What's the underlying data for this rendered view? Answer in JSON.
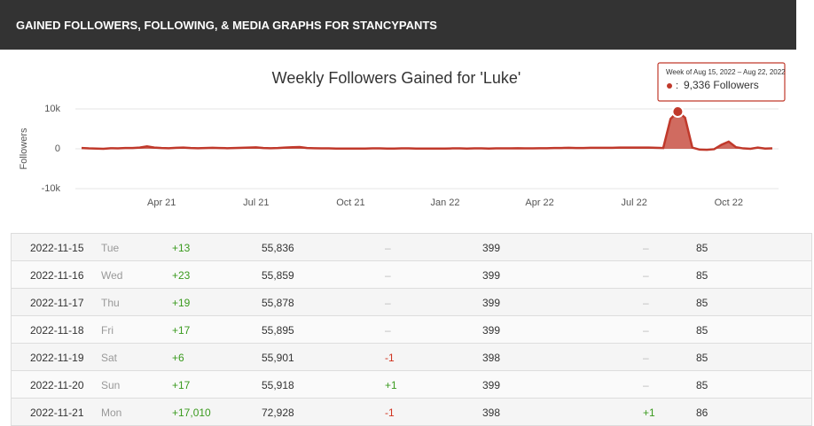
{
  "header": {
    "title": "GAINED FOLLOWERS, FOLLOWING, & MEDIA GRAPHS FOR STANCYPANTS"
  },
  "chart_data": {
    "type": "line",
    "title": "Weekly Followers Gained for 'Luke'",
    "y_label": "Followers",
    "categories": [
      null,
      null,
      null,
      null,
      null,
      null,
      null,
      null,
      null,
      null,
      null,
      "Apr 21",
      null,
      null,
      null,
      null,
      null,
      null,
      null,
      null,
      null,
      null,
      null,
      null,
      "Jul 21",
      null,
      null,
      null,
      null,
      null,
      null,
      null,
      null,
      null,
      null,
      null,
      null,
      "Oct 21",
      null,
      null,
      null,
      null,
      null,
      null,
      null,
      null,
      null,
      null,
      null,
      null,
      "Jan 22",
      null,
      null,
      null,
      null,
      null,
      null,
      null,
      null,
      null,
      null,
      null,
      null,
      "Apr 22",
      null,
      null,
      null,
      null,
      null,
      null,
      null,
      null,
      null,
      null,
      null,
      null,
      "Jul 22",
      null,
      null,
      null,
      null,
      null,
      null,
      null,
      null,
      null,
      null,
      null,
      null,
      "Oct 22",
      null,
      null,
      null,
      null,
      null,
      null
    ],
    "series": [
      {
        "name": "Followers",
        "color": "#c0392b",
        "values": [
          200,
          100,
          50,
          0,
          150,
          100,
          200,
          200,
          300,
          600,
          300,
          200,
          150,
          250,
          300,
          200,
          150,
          200,
          250,
          200,
          150,
          200,
          250,
          300,
          350,
          200,
          150,
          200,
          300,
          400,
          450,
          200,
          150,
          100,
          100,
          50,
          50,
          50,
          50,
          50,
          100,
          100,
          50,
          50,
          100,
          100,
          50,
          50,
          50,
          50,
          50,
          100,
          100,
          50,
          100,
          100,
          50,
          100,
          100,
          100,
          150,
          100,
          100,
          150,
          150,
          200,
          200,
          250,
          200,
          200,
          250,
          250,
          250,
          250,
          300,
          300,
          300,
          300,
          300,
          250,
          200,
          7500,
          9336,
          7800,
          300,
          -200,
          -250,
          -100,
          1000,
          1800,
          400,
          100,
          0,
          300,
          50,
          100
        ]
      }
    ],
    "ylim": [
      -10000,
      10000
    ],
    "yticks": [
      {
        "value": 10000,
        "label": "10k"
      },
      0,
      {
        "value": -10000,
        "label": "-10k"
      }
    ],
    "grid": true,
    "tooltip": {
      "title": "Week of Aug 15, 2022 – Aug 22, 2022",
      "label": "9,336 Followers"
    }
  },
  "table": {
    "rows": [
      [
        "2022-11-15",
        "Tue",
        "+13",
        "55,836",
        "–",
        "399",
        "–",
        "85"
      ],
      [
        "2022-11-16",
        "Wed",
        "+23",
        "55,859",
        "–",
        "399",
        "–",
        "85"
      ],
      [
        "2022-11-17",
        "Thu",
        "+19",
        "55,878",
        "–",
        "399",
        "–",
        "85"
      ],
      [
        "2022-11-18",
        "Fri",
        "+17",
        "55,895",
        "–",
        "399",
        "–",
        "85"
      ],
      [
        "2022-11-19",
        "Sat",
        "+6",
        "55,901",
        "-1",
        "398",
        "–",
        "85"
      ],
      [
        "2022-11-20",
        "Sun",
        "+17",
        "55,918",
        "+1",
        "399",
        "–",
        "85"
      ],
      [
        "2022-11-21",
        "Mon",
        "+17,010",
        "72,928",
        "-1",
        "398",
        "+1",
        "86"
      ]
    ]
  }
}
